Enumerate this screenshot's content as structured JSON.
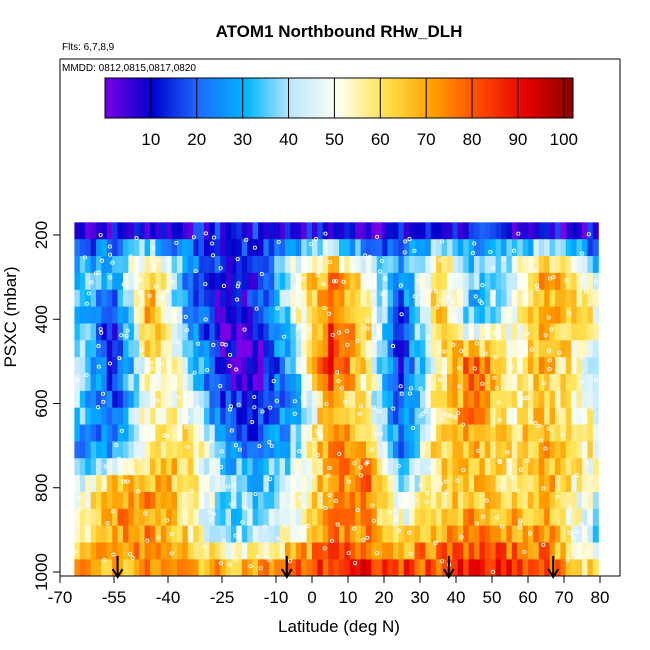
{
  "chart_data": {
    "type": "heatmap",
    "title": "ATOM1 Northbound RHw_DLH",
    "subtitle_flights": "Flts: 6,7,8,9",
    "subtitle_dates": "MMDD: 0812,0815,0817,0820",
    "xlabel": "Latitude (deg N)",
    "ylabel": "PSXC (mbar)",
    "xlim": [
      -70,
      85
    ],
    "ylim": [
      1000,
      150
    ],
    "x_ticks": [
      -70,
      -55,
      -40,
      -25,
      -10,
      0,
      10,
      20,
      30,
      40,
      50,
      60,
      70,
      80
    ],
    "y_ticks": [
      200,
      400,
      600,
      800,
      1000
    ],
    "colorbar": {
      "ticks": [
        10,
        20,
        30,
        40,
        50,
        60,
        70,
        80,
        90,
        100
      ],
      "range": [
        0,
        102
      ],
      "colors": [
        "#7b00e6",
        "#0000cd",
        "#1e6bff",
        "#00b4ff",
        "#bfe8ff",
        "#fffff0",
        "#ffe14d",
        "#ffa000",
        "#ff4a00",
        "#e60000",
        "#8b0000"
      ]
    },
    "flight_break_latitudes": [
      -54,
      -7,
      38,
      67
    ],
    "data_extent": {
      "lat": [
        -66,
        79
      ],
      "pressure": [
        170,
        1000
      ]
    },
    "pressure_levels": [
      200,
      250,
      300,
      350,
      400,
      450,
      500,
      550,
      600,
      650,
      700,
      750,
      800,
      850,
      900,
      950,
      1000
    ],
    "rh_profile": {
      "levels": [
        {
          "p": 200,
          "lats": [
            -66,
            -40,
            -20,
            0,
            20,
            40,
            60,
            79
          ],
          "values": [
            8,
            10,
            12,
            10,
            8,
            12,
            10,
            8
          ]
        },
        {
          "p": 250,
          "lats": [
            -66,
            -55,
            -45,
            -35,
            -25,
            -15,
            -5,
            5,
            15,
            25,
            35,
            45,
            55,
            65,
            79
          ],
          "values": [
            20,
            35,
            55,
            30,
            15,
            20,
            45,
            60,
            40,
            25,
            55,
            30,
            40,
            60,
            30
          ]
        },
        {
          "p": 300,
          "lats": [
            -66,
            -55,
            -45,
            -35,
            -25,
            -15,
            -5,
            5,
            15,
            25,
            35,
            45,
            55,
            65,
            79
          ],
          "values": [
            35,
            30,
            70,
            25,
            10,
            15,
            50,
            75,
            55,
            20,
            70,
            35,
            45,
            75,
            45
          ]
        },
        {
          "p": 400,
          "lats": [
            -66,
            -55,
            -45,
            -35,
            -25,
            -15,
            -5,
            5,
            15,
            25,
            35,
            45,
            55,
            65,
            79
          ],
          "values": [
            40,
            8,
            75,
            30,
            5,
            10,
            45,
            80,
            65,
            15,
            65,
            30,
            50,
            70,
            55
          ]
        },
        {
          "p": 500,
          "lats": [
            -66,
            -55,
            -45,
            -35,
            -25,
            -15,
            -5,
            5,
            15,
            25,
            35,
            45,
            55,
            65,
            79
          ],
          "values": [
            45,
            10,
            60,
            45,
            5,
            5,
            35,
            90,
            60,
            10,
            55,
            85,
            50,
            70,
            45
          ]
        },
        {
          "p": 600,
          "lats": [
            -66,
            -55,
            -45,
            -35,
            -25,
            -15,
            -5,
            5,
            15,
            25,
            35,
            45,
            55,
            65,
            79
          ],
          "values": [
            40,
            15,
            55,
            50,
            15,
            10,
            30,
            70,
            55,
            15,
            60,
            75,
            55,
            65,
            50
          ]
        },
        {
          "p": 700,
          "lats": [
            -66,
            -55,
            -45,
            -35,
            -25,
            -15,
            -5,
            5,
            15,
            25,
            35,
            45,
            55,
            65,
            79
          ],
          "values": [
            25,
            20,
            60,
            65,
            30,
            20,
            35,
            75,
            70,
            20,
            65,
            70,
            60,
            70,
            55
          ]
        },
        {
          "p": 800,
          "lats": [
            -66,
            -55,
            -45,
            -35,
            -25,
            -15,
            -5,
            5,
            15,
            25,
            35,
            45,
            55,
            65,
            79
          ],
          "values": [
            40,
            75,
            70,
            65,
            40,
            35,
            45,
            70,
            80,
            35,
            60,
            65,
            60,
            70,
            45
          ]
        },
        {
          "p": 900,
          "lats": [
            -66,
            -55,
            -45,
            -35,
            -25,
            -15,
            -5,
            5,
            15,
            25,
            35,
            45,
            55,
            65,
            79
          ],
          "values": [
            55,
            70,
            75,
            60,
            35,
            40,
            50,
            75,
            72,
            55,
            70,
            75,
            70,
            72,
            35
          ]
        },
        {
          "p": 1000,
          "lats": [
            -66,
            -55,
            -45,
            -35,
            -25,
            -15,
            -5,
            5,
            15,
            25,
            35,
            45,
            55,
            65,
            79
          ],
          "values": [
            70,
            68,
            72,
            72,
            72,
            75,
            80,
            85,
            88,
            85,
            82,
            88,
            85,
            80,
            60
          ]
        }
      ]
    }
  }
}
